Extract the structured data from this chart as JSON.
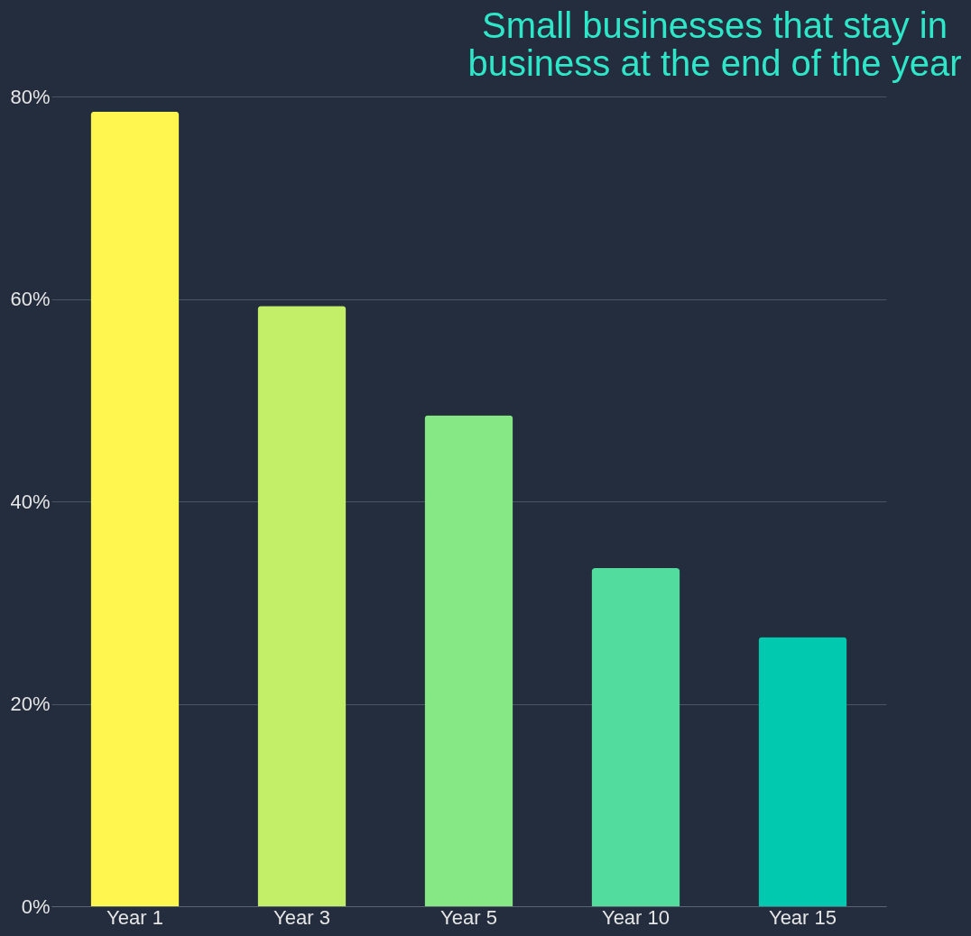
{
  "chart_data": {
    "type": "bar",
    "title": "Small businesses that stay in business at the end of the year",
    "categories": [
      "Year 1",
      "Year 3",
      "Year 5",
      "Year 10",
      "Year 15"
    ],
    "values": [
      78.5,
      59.3,
      48.5,
      33.4,
      26.6
    ],
    "colors": [
      "#fff650",
      "#c3ef68",
      "#86e884",
      "#52dc9e",
      "#00c9b0"
    ],
    "ylim": [
      0,
      80
    ],
    "yticks": [
      {
        "value": 0,
        "label": "0%"
      },
      {
        "value": 20,
        "label": "20%"
      },
      {
        "value": 40,
        "label": "40%"
      },
      {
        "value": 60,
        "label": "60%"
      },
      {
        "value": 80,
        "label": "80%"
      }
    ],
    "grid": "y",
    "legend": false
  }
}
